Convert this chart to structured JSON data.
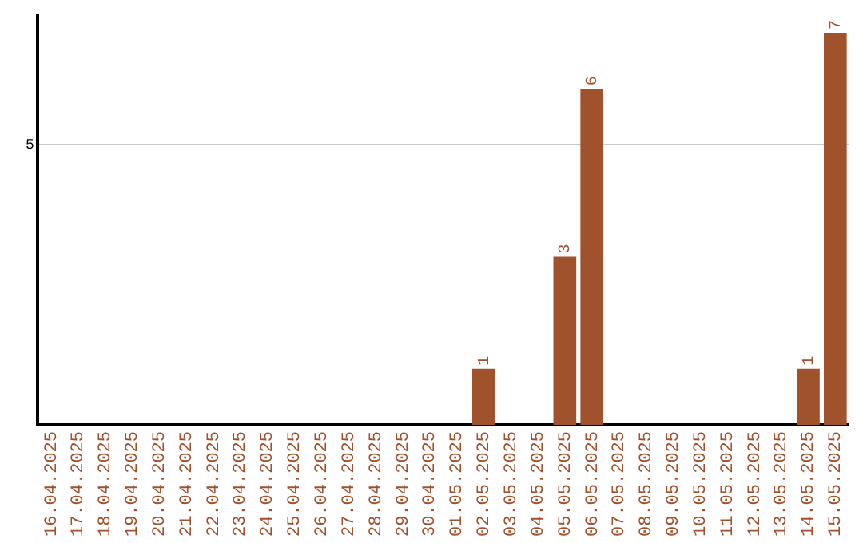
{
  "chart_data": {
    "type": "bar",
    "categories": [
      "16.04.2025",
      "17.04.2025",
      "18.04.2025",
      "19.04.2025",
      "20.04.2025",
      "21.04.2025",
      "22.04.2025",
      "23.04.2025",
      "24.04.2025",
      "25.04.2025",
      "26.04.2025",
      "27.04.2025",
      "28.04.2025",
      "29.04.2025",
      "30.04.2025",
      "01.05.2025",
      "02.05.2025",
      "03.05.2025",
      "04.05.2025",
      "05.05.2025",
      "06.05.2025",
      "07.05.2025",
      "08.05.2025",
      "09.05.2025",
      "10.05.2025",
      "11.05.2025",
      "12.05.2025",
      "13.05.2025",
      "14.05.2025",
      "15.05.2025"
    ],
    "values": [
      null,
      null,
      null,
      null,
      null,
      null,
      null,
      null,
      null,
      null,
      null,
      null,
      null,
      null,
      null,
      null,
      1,
      null,
      null,
      3,
      6,
      null,
      null,
      null,
      null,
      null,
      null,
      null,
      1,
      7
    ],
    "data_labels": true,
    "color": "#a0522d",
    "ylim": [
      0,
      7.3
    ],
    "yticks": [
      5
    ],
    "grid": "y",
    "legend": false
  }
}
